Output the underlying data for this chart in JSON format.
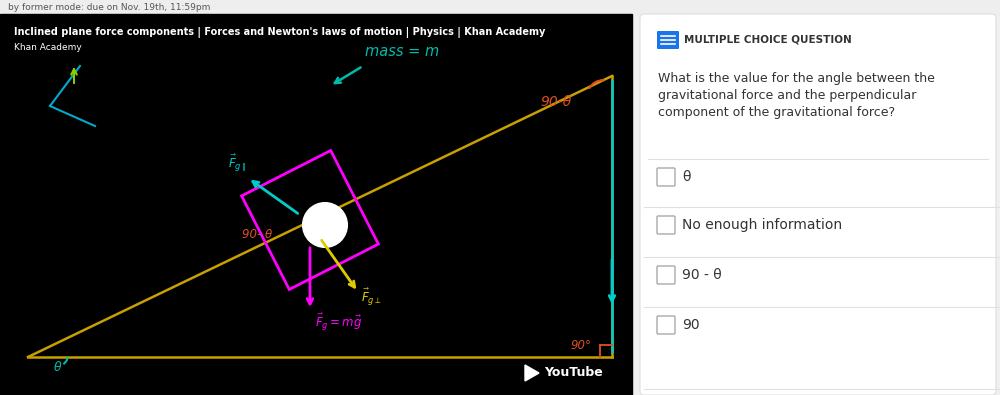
{
  "bg_color": "#f0f0f0",
  "video_bg": "#000000",
  "video_title": "Inclined plane force components | Forces and Newton's laws of motion | Physics | Khan Academy",
  "video_subtitle": "Khan Academy",
  "panel_bg": "#ffffff",
  "mcq_icon_color": "#1a73e8",
  "mcq_label": "MULTIPLE CHOICE QUESTION",
  "question_lines": [
    "What is the value for the angle between the",
    "gravitational force and the perpendicular",
    "component of the gravitational force?"
  ],
  "choices": [
    "θ",
    "No enough information",
    "90 - θ",
    "90"
  ],
  "text_color": "#333333",
  "divider_color": "#e0e0e0",
  "header_text": "by former mode: due on Nov. 19th, 11:59pm",
  "header_bg": "#eeeeee",
  "plane_color": "#c8a000",
  "block_color": "#ff00ff",
  "cyan_color": "#00cccc",
  "teal_color": "#00bbaa",
  "orange_color": "#e05020",
  "yellow_color": "#ddcc00",
  "magenta_color": "#ff00ff",
  "green_color": "#00cc44"
}
